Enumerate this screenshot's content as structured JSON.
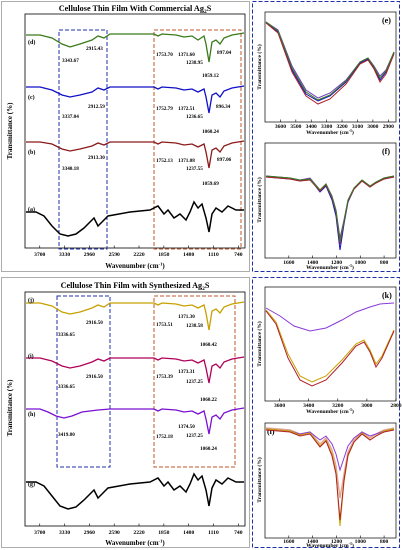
{
  "panels": {
    "top": {
      "title_main": "Cellulose Thin Film With Commercial Ag",
      "title_sub": "2",
      "title_tail": "S"
    },
    "bottom": {
      "title_main": "Cellulose Thin Film with Synthesized Ag",
      "title_sub": "2",
      "title_tail": "S"
    },
    "e": {
      "label": "(e)"
    },
    "f": {
      "label": "(f)"
    },
    "k": {
      "label": "(k)"
    },
    "l": {
      "label": "(l)"
    }
  },
  "axes": {
    "ylabel": "Transmittance (%)",
    "xlabel_main": "Wavenumber (cm",
    "xlabel_sup": "-1",
    "xlabel_tail": ")"
  },
  "colors": {
    "frame_blue": "#1f2fa8",
    "frame_orange": "#c0552a",
    "green": "#3a7a1a",
    "blue": "#1010c8",
    "darkred": "#8b1a1a",
    "black": "#000000",
    "gold": "#c8a000",
    "magenta": "#b0005a",
    "purple": "#7a10d0",
    "violet": "#7040c0",
    "tan": "#c89a60"
  },
  "chart_data": [
    {
      "type": "line",
      "name": "top",
      "xlim": [
        3920,
        640
      ],
      "xticks": [
        "3700",
        "3330",
        "2960",
        "2590",
        "2220",
        "1850",
        "1480",
        "1110",
        "740"
      ],
      "series": [
        {
          "name": "(d)",
          "peaks": [
            {
              "x": 3343.67,
              "label": "3343.67"
            },
            {
              "x": 2915.43,
              "label": "2915.43"
            },
            {
              "x": 1753.7,
              "label": "1753.70"
            },
            {
              "x": 1371.6,
              "label": "1371.60"
            },
            {
              "x": 1238.95,
              "label": "1238.95"
            },
            {
              "x": 1059.12,
              "label": "1059.12"
            },
            {
              "x": 897.04,
              "label": "897.04"
            }
          ]
        },
        {
          "name": "(c)",
          "peaks": [
            {
              "x": 3337.04,
              "label": "3337.04"
            },
            {
              "x": 2912.59,
              "label": "2912.59"
            },
            {
              "x": 1752.79,
              "label": "1752.79"
            },
            {
              "x": 1372.51,
              "label": "1372.51"
            },
            {
              "x": 1236.65,
              "label": "1236.65"
            },
            {
              "x": 1060.24,
              "label": "1060.24"
            },
            {
              "x": 896.34,
              "label": "896.34"
            }
          ]
        },
        {
          "name": "(b)",
          "peaks": [
            {
              "x": 3340.18,
              "label": "3340.18"
            },
            {
              "x": 2913.3,
              "label": "2913.30"
            },
            {
              "x": 1752.13,
              "label": "1752.13"
            },
            {
              "x": 1371.08,
              "label": "1371.08"
            },
            {
              "x": 1237.55,
              "label": "1237.55"
            },
            {
              "x": 1059.69,
              "label": "1059.69"
            },
            {
              "x": 897.06,
              "label": "897.06"
            }
          ]
        },
        {
          "name": "(a)",
          "peaks": []
        }
      ]
    },
    {
      "type": "line",
      "name": "bottom",
      "xlim": [
        3920,
        640
      ],
      "xticks": [
        "3700",
        "3330",
        "2960",
        "2590",
        "2220",
        "1850",
        "1480",
        "1110",
        "740"
      ],
      "series": [
        {
          "name": "(j)",
          "peaks": [
            {
              "x": 3336.65,
              "label": "3336.65"
            },
            {
              "x": 2916.5,
              "label": "2916.50"
            },
            {
              "x": 1753.51,
              "label": "1753.51"
            },
            {
              "x": 1371.3,
              "label": "1371.30"
            },
            {
              "x": 1238.58,
              "label": "1238.58"
            },
            {
              "x": 1060.42,
              "label": "1060.42"
            }
          ]
        },
        {
          "name": "(i)",
          "peaks": [
            {
              "x": 3336.65,
              "label": "3336.65"
            },
            {
              "x": 2916.5,
              "label": "2916.50"
            },
            {
              "x": 1753.39,
              "label": "1753.39"
            },
            {
              "x": 1373.31,
              "label": "1373.31"
            },
            {
              "x": 1237.25,
              "label": "1237.25"
            },
            {
              "x": 1060.22,
              "label": "1060.22"
            }
          ]
        },
        {
          "name": "(h)",
          "peaks": [
            {
              "x": 3419.8,
              "label": "3419.80"
            },
            {
              "x": 1752.18,
              "label": "1752.18"
            },
            {
              "x": 1374.5,
              "label": "1374.50"
            },
            {
              "x": 1237.25,
              "label": "1237.25"
            },
            {
              "x": 1060.24,
              "label": "1060.24"
            }
          ]
        },
        {
          "name": "(g)",
          "peaks": []
        }
      ]
    },
    {
      "type": "line",
      "name": "(e)",
      "xlim": [
        3700,
        2850
      ],
      "xticks": [
        "3600",
        "3500",
        "3400",
        "3300",
        "3200",
        "3100",
        "3000",
        "2900"
      ]
    },
    {
      "type": "line",
      "name": "(f)",
      "xlim": [
        1800,
        700
      ],
      "xticks": [
        "1600",
        "1400",
        "1200",
        "1000",
        "800"
      ]
    },
    {
      "type": "line",
      "name": "(k)",
      "xlim": [
        3700,
        2800
      ],
      "xticks": [
        "3600",
        "3400",
        "3200",
        "3000",
        "2800"
      ]
    },
    {
      "type": "line",
      "name": "(l)",
      "xlim": [
        1800,
        700
      ],
      "xticks": [
        "1600",
        "1400",
        "1200",
        "1000",
        "800"
      ]
    }
  ]
}
